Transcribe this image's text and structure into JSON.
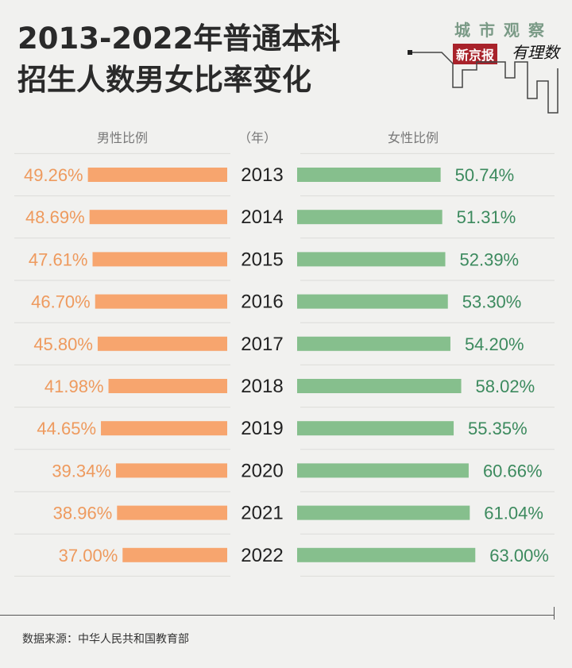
{
  "chart_data": {
    "type": "bar",
    "orientation": "horizontal-butterfly",
    "title": "2013-2022年普通本科招生人数男女比率变化",
    "title_lines": [
      "2013-2022年普通本科",
      "招生人数男女比率变化"
    ],
    "left_header": "男性比例",
    "center_header": "（年）",
    "right_header": "女性比例",
    "categories": [
      "2013",
      "2014",
      "2015",
      "2016",
      "2017",
      "2018",
      "2019",
      "2020",
      "2021",
      "2022"
    ],
    "series": [
      {
        "name": "男性比例",
        "values": [
          49.26,
          48.69,
          47.61,
          46.7,
          45.8,
          41.98,
          44.65,
          39.34,
          38.96,
          37.0
        ],
        "labels": [
          "49.26%",
          "48.69%",
          "47.61%",
          "46.70%",
          "45.80%",
          "41.98%",
          "44.65%",
          "39.34%",
          "38.96%",
          "37.00%"
        ],
        "color": "#f7a56e",
        "label_color": "#ee9a5e"
      },
      {
        "name": "女性比例",
        "values": [
          50.74,
          51.31,
          52.39,
          53.3,
          54.2,
          58.02,
          55.35,
          60.66,
          61.04,
          63.0
        ],
        "labels": [
          "50.74%",
          "51.31%",
          "52.39%",
          "53.30%",
          "54.20%",
          "58.02%",
          "55.35%",
          "60.66%",
          "61.04%",
          "63.00%"
        ],
        "color": "#86bf8d",
        "label_color": "#3c8a5e"
      }
    ],
    "unit": "%",
    "grid": false,
    "legend": "none"
  },
  "logo": {
    "top": "城市观察",
    "brand": "新京报",
    "column": "有理数",
    "brand_color": "#a8222a"
  },
  "source": "数据来源：中华人民共和国教育部"
}
